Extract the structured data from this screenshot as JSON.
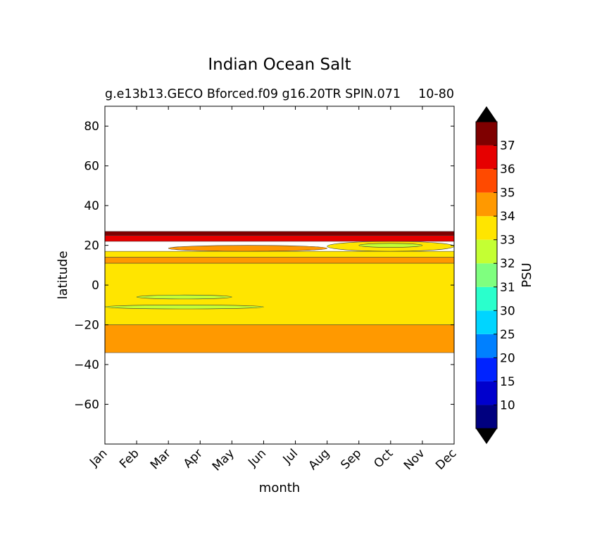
{
  "chart_data": {
    "type": "contour",
    "title": "Indian Ocean Salt",
    "subtitle": "g.e13b13.GECO Bforced.f09 g16.20TR SPIN.071",
    "subtitle_right": "10-80",
    "xlabel": "month",
    "ylabel": "latitude",
    "x_categories": [
      "Jan",
      "Feb",
      "Mar",
      "Apr",
      "May",
      "Jun",
      "Jul",
      "Aug",
      "Sep",
      "Oct",
      "Nov",
      "Dec"
    ],
    "ylim": [
      -80,
      90
    ],
    "y_ticks": [
      80,
      60,
      40,
      20,
      0,
      -20,
      -40,
      -60
    ],
    "y_tick_labels": [
      "80",
      "60",
      "40",
      "20",
      "0",
      "−20",
      "−40",
      "−60"
    ],
    "colorbar": {
      "label": "PSU",
      "levels": [
        "10",
        "15",
        "20",
        "25",
        "30",
        "31",
        "32",
        "33",
        "34",
        "35",
        "36",
        "37"
      ],
      "colors": [
        "#00007f",
        "#0000cd",
        "#0023ff",
        "#0080ff",
        "#00d5ff",
        "#2affcc",
        "#7fff7f",
        "#c4ff33",
        "#ffe500",
        "#ff9900",
        "#ff4a00",
        "#e60000",
        "#7f0000"
      ],
      "extend": "both"
    },
    "regions": [
      {
        "lat_range": [
          -34,
          -20
        ],
        "value_range": "34-35",
        "color": "#ff9900"
      },
      {
        "lat_range": [
          -20,
          11
        ],
        "value_range": "33-34",
        "color": "#ffe500"
      },
      {
        "lat_range": [
          -12,
          -10
        ],
        "month_range": [
          "Jan",
          "Jun"
        ],
        "value_range": "32-33",
        "color": "#c4ff33"
      },
      {
        "lat_range": [
          -7,
          -5
        ],
        "month_range": [
          "Feb",
          "May"
        ],
        "value_range": "32-33",
        "color": "#c4ff33"
      },
      {
        "lat_range": [
          11,
          14
        ],
        "value_range": "34-35",
        "color": "#ff9900"
      },
      {
        "lat_range": [
          14,
          17
        ],
        "value_range": "33-34",
        "color": "#ffe500"
      },
      {
        "lat_range": [
          17,
          20
        ],
        "month_range": [
          "Mar",
          "Aug"
        ],
        "value_range": "34-35",
        "color": "#ff9900"
      },
      {
        "lat_range": [
          17,
          22
        ],
        "month_range": [
          "Aug",
          "Dec"
        ],
        "value_range": "33-34",
        "color": "#ffe500"
      },
      {
        "lat_range": [
          19,
          21
        ],
        "month_range": [
          "Sep",
          "Nov"
        ],
        "value_range": "32-33",
        "color": "#c4ff33"
      },
      {
        "lat_range": [
          22,
          25
        ],
        "value_range": "36-37",
        "color": "#e60000"
      },
      {
        "lat_range": [
          25,
          27
        ],
        "value_range": ">37",
        "color": "#7f0000"
      }
    ]
  }
}
